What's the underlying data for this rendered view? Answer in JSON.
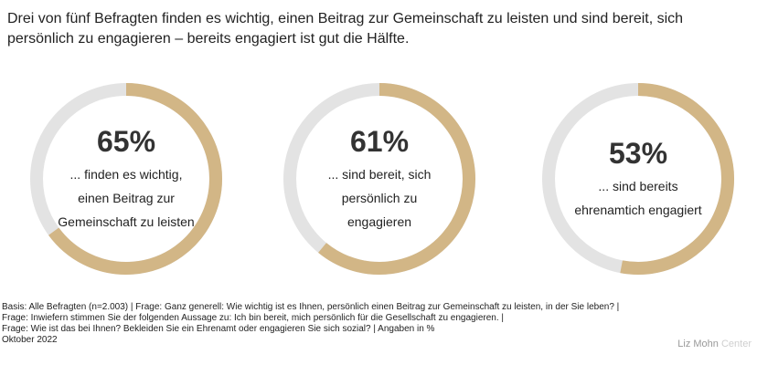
{
  "title": "Drei von fünf Befragten finden es wichtig, einen Beitrag zur Gemeinschaft zu leisten und sind bereit, sich persönlich zu engagieren – bereits engagiert ist gut die Hälfte.",
  "colors": {
    "filled": "#D2B686",
    "track": "#E3E3E3"
  },
  "chart_data": [
    {
      "type": "pie",
      "value": 65,
      "label": "65%",
      "description": "... finden es wichtig, einen Beitrag zur Gemeinschaft zu leisten"
    },
    {
      "type": "pie",
      "value": 61,
      "label": "61%",
      "description": "... sind bereit, sich persönlich zu engagieren"
    },
    {
      "type": "pie",
      "value": 53,
      "label": "53%",
      "description": "... sind bereits ehrenamtich engagiert"
    }
  ],
  "footnote": [
    "Basis: Alle Befragten (n=2.003) | Frage: Ganz generell: Wie wichtig ist es Ihnen, persönlich einen Beitrag zur Gemeinschaft zu leisten, in der Sie leben? |",
    "Frage: Inwiefern stimmen Sie der folgenden Aussage zu: Ich bin bereit, mich persönlich für die Gesellschaft zu engagieren. |",
    "Frage: Wie ist das bei Ihnen? Bekleiden Sie ein Ehrenamt oder engagieren Sie sich sozial? | Angaben in %",
    "Oktober 2022"
  ],
  "brand": {
    "main": "Liz Mohn",
    "light": "Center"
  }
}
